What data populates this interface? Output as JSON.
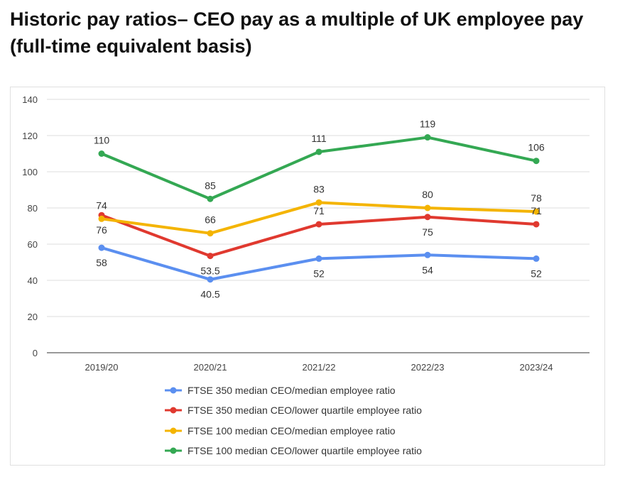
{
  "title": "Historic pay ratios– CEO pay as a multiple of UK employee pay (full-time equivalent basis)",
  "chart_data": {
    "type": "line",
    "categories": [
      "2019/20",
      "2020/21",
      "2021/22",
      "2022/23",
      "2023/24"
    ],
    "ylim": [
      0,
      140
    ],
    "yticks": [
      0,
      20,
      40,
      60,
      80,
      100,
      120,
      140
    ],
    "grid": true,
    "legend_position": "bottom",
    "series": [
      {
        "name": "FTSE 350 median CEO/median employee ratio",
        "color": "#5b8ff0",
        "values": [
          58,
          40.5,
          52,
          54,
          52
        ],
        "label_pos": [
          "below",
          "below",
          "below",
          "below",
          "below"
        ]
      },
      {
        "name": "FTSE 350 median CEO/lower quartile employee ratio",
        "color": "#e0392f",
        "values": [
          76,
          53.5,
          71,
          75,
          71
        ],
        "label_pos": [
          "below",
          "below",
          "above",
          "below",
          "above"
        ]
      },
      {
        "name": "FTSE 100 median CEO/median employee ratio",
        "color": "#f4b400",
        "values": [
          74,
          66,
          83,
          80,
          78
        ],
        "label_pos": [
          "above",
          "above",
          "above",
          "above",
          "above"
        ]
      },
      {
        "name": "FTSE 100 median CEO/lower quartile employee ratio",
        "color": "#34a853",
        "values": [
          110,
          85,
          111,
          119,
          106
        ],
        "label_pos": [
          "above",
          "above",
          "above",
          "above",
          "above"
        ]
      }
    ]
  }
}
